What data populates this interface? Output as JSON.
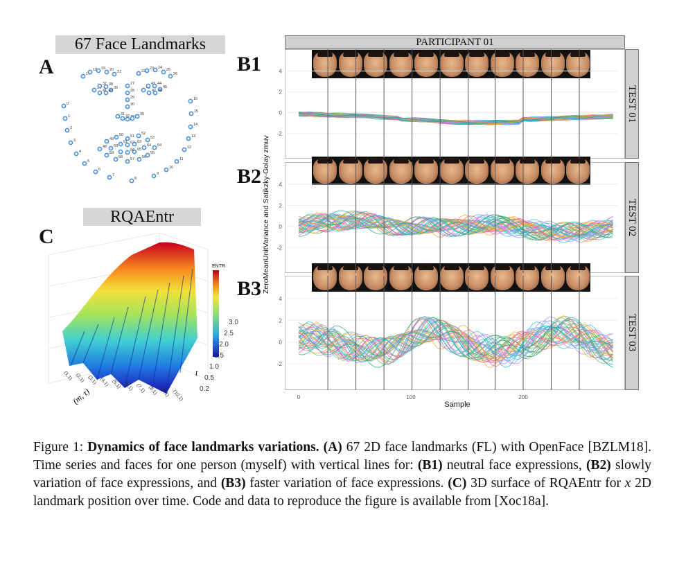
{
  "panel_letters": {
    "a": "A",
    "b1": "B1",
    "b2": "B2",
    "b3": "B3",
    "c": "C"
  },
  "panel_a": {
    "title": "67 Face Landmarks",
    "landmarks_numbered_visible": [
      "0",
      "1",
      "2",
      "3",
      "4",
      "5",
      "6",
      "7",
      "8",
      "9",
      "10",
      "11",
      "12",
      "13",
      "14",
      "15",
      "16",
      "17",
      "18",
      "19",
      "20",
      "21",
      "22",
      "23",
      "24",
      "25",
      "26",
      "27",
      "28",
      "29",
      "30",
      "31",
      "32",
      "33",
      "34",
      "35",
      "36",
      "37",
      "38",
      "39",
      "40",
      "41",
      "42",
      "43",
      "44",
      "45",
      "46",
      "47",
      "48",
      "49",
      "50",
      "51",
      "52",
      "53",
      "54",
      "55",
      "56",
      "57",
      "58",
      "59",
      "60",
      "61",
      "62",
      "63",
      "64",
      "65",
      "66"
    ]
  },
  "panel_c": {
    "title": "RQAEntr",
    "legend_title": "ENTR",
    "z_ticks": [
      "0.2",
      "0.5",
      "1.0",
      "1.5",
      "2.0",
      "2.5",
      "3.0"
    ],
    "x_tick_labels": [
      "(1,1)",
      "(2,1)",
      "(3,1)",
      "(4,1)",
      "(5,1)",
      "(6,1)",
      "(7,1)",
      "(8,1)",
      "(9,1)",
      "(10,1)"
    ],
    "x_axis_label": "(m, τ)",
    "y_axis_label": "t",
    "colors": {
      "low": "#2b1bbf",
      "mid": "#39c2c9",
      "mid2": "#e9e23a",
      "high": "#c8001a"
    }
  },
  "panel_b": {
    "strip_top": "PARTICIPANT 01",
    "facets": [
      "TEST 01",
      "TEST 02",
      "TEST 03"
    ],
    "y_axis_label": "ZeroMeanUnitVariance and Satikzky-Golay zmuv",
    "x_axis_label": "Sample",
    "y_ticks": [
      "4",
      "2",
      "0",
      "-2"
    ],
    "x_ticks": [
      "0",
      "100",
      "200"
    ],
    "colors": {
      "pink": "#f06292",
      "cyan": "#26c6da",
      "green": "#66bb6a",
      "orange": "#ffa726",
      "purple": "#b388ff",
      "teal": "#26a69a"
    },
    "face_counts": [
      11,
      11,
      11
    ]
  },
  "caption": {
    "label": "Figure 1:",
    "bold_title": "Dynamics of face landmarks variations.",
    "seg_a_label": "(A)",
    "seg_a_text": " 67 2D face landmarks (FL) with OpenFace [BZLM18]. Time series and faces for one person (myself) with vertical lines for: ",
    "seg_b1_label": "(B1)",
    "seg_b1_text": " neutral face expressions, ",
    "seg_b2_label": "(B2)",
    "seg_b2_text": " slowly variation of face expressions, and ",
    "seg_b3_label": "(B3)",
    "seg_b3_text": " faster variation of face expressions. ",
    "seg_c_label": "(C)",
    "seg_c_text": " 3D surface of RQAEntr for ",
    "seg_x": "x",
    "seg_end": " 2D landmark position over time. Code and data to reproduce the figure is available from [Xoc18a]."
  }
}
